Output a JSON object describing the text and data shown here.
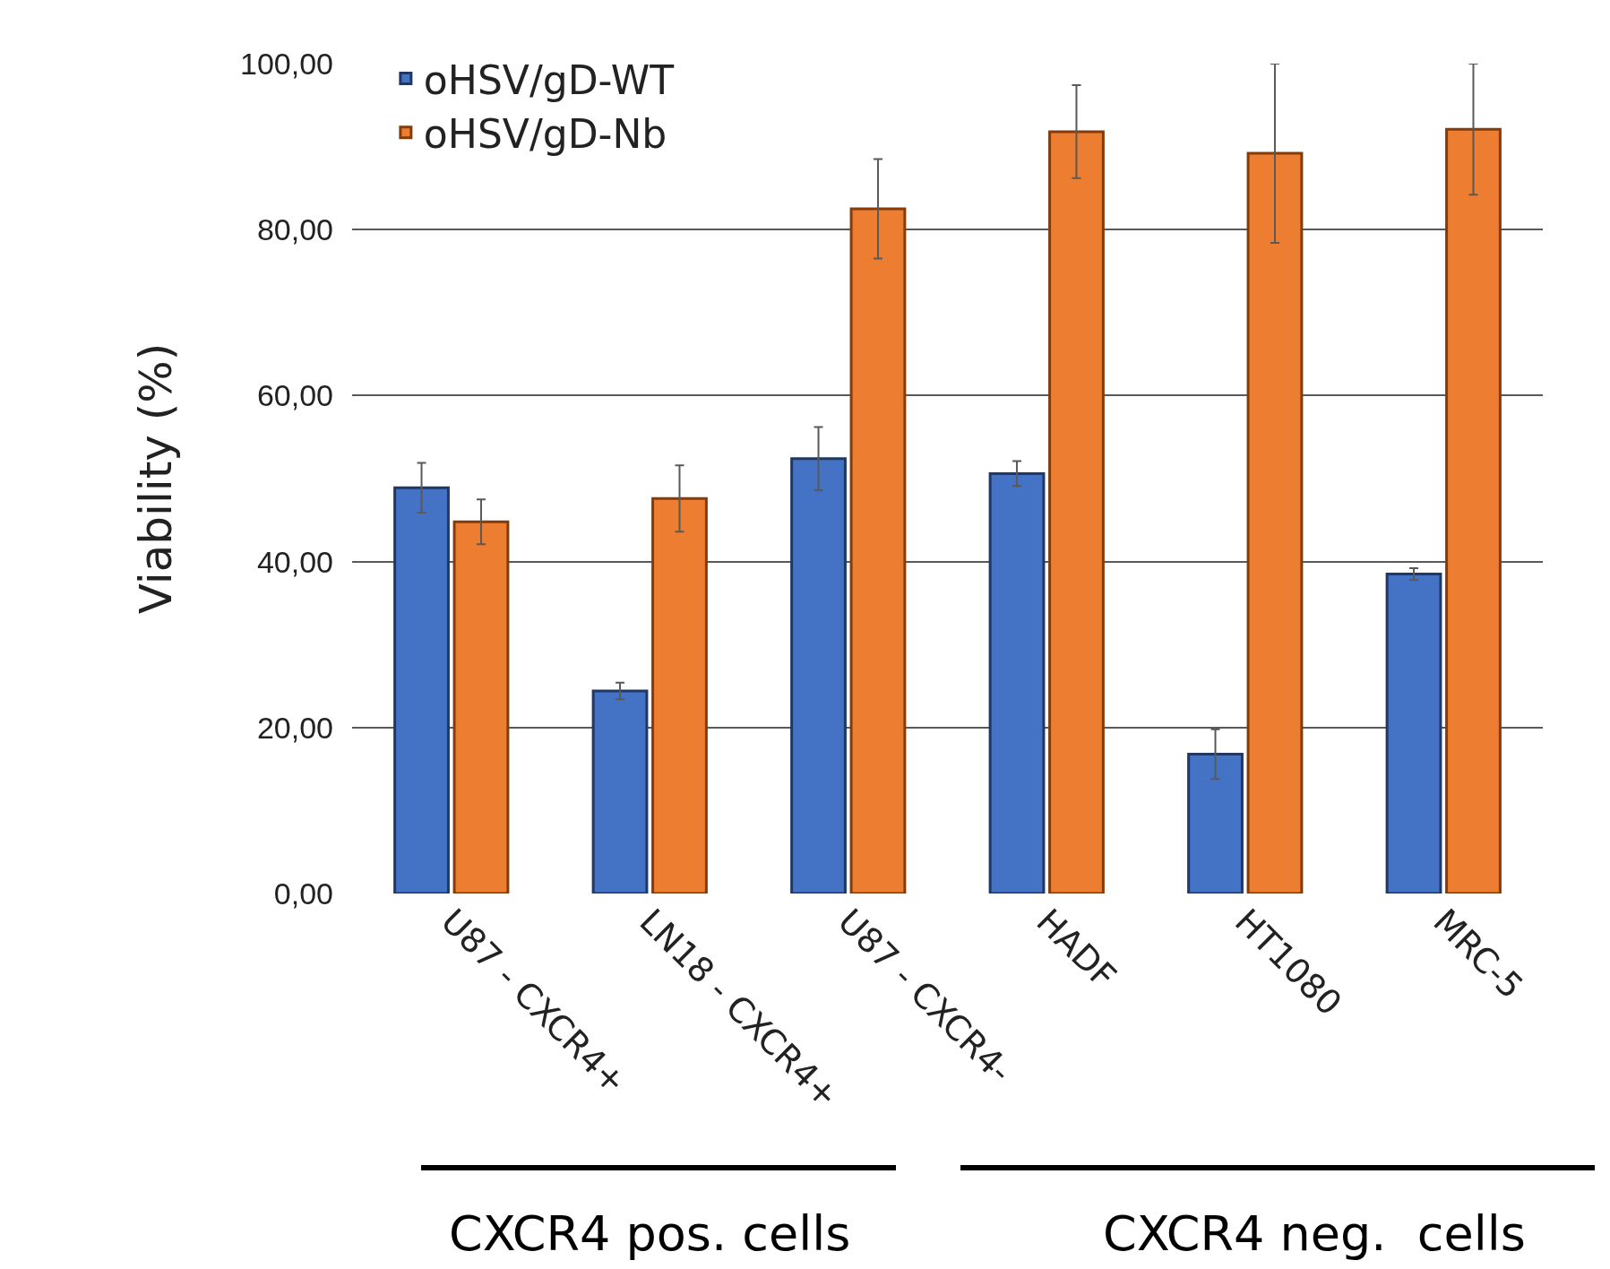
{
  "chart_data": {
    "type": "bar",
    "ylabel": "Viability (%)",
    "categories": [
      "U87 - CXCR4+",
      "LN18 - CXCR4+",
      "U87 - CXCR4-",
      "HADF",
      "HT1080",
      "MRC-5"
    ],
    "series": [
      {
        "name": "oHSV/gD-WT",
        "color": "#4472c4",
        "values": [
          48.9,
          24.4,
          52.4,
          50.6,
          16.8,
          38.5
        ],
        "errors": [
          3,
          1,
          3.8,
          1.5,
          3,
          0.7
        ]
      },
      {
        "name": "oHSV/gD-Nb",
        "color": "#ed7d31",
        "values": [
          44.8,
          47.6,
          82.5,
          91.8,
          89.2,
          92.1
        ],
        "errors": [
          2.7,
          4,
          6,
          5.6,
          10.8,
          7.9
        ]
      }
    ],
    "ylim": [
      0,
      100
    ],
    "yticks": [
      {
        "value": 0,
        "label": "0,00"
      },
      {
        "value": 20,
        "label": "20,00"
      },
      {
        "value": 40,
        "label": "40,00"
      },
      {
        "value": 60,
        "label": "60,00"
      },
      {
        "value": 80,
        "label": "80,00"
      },
      {
        "value": 100,
        "label": "100,00"
      }
    ],
    "grid": "y",
    "legend": "top left",
    "annotations": [
      "CXCR4 pos. cells",
      "CXCR4 neg.  cells"
    ]
  }
}
